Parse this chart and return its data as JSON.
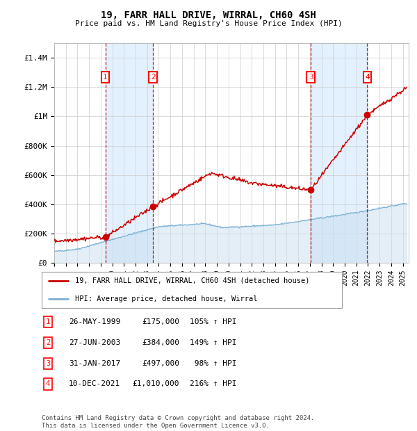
{
  "title": "19, FARR HALL DRIVE, WIRRAL, CH60 4SH",
  "subtitle": "Price paid vs. HM Land Registry's House Price Index (HPI)",
  "ylim": [
    0,
    1500000
  ],
  "yticks": [
    0,
    200000,
    400000,
    600000,
    800000,
    1000000,
    1200000,
    1400000
  ],
  "ytick_labels": [
    "£0",
    "£200K",
    "£400K",
    "£600K",
    "£800K",
    "£1M",
    "£1.2M",
    "£1.4M"
  ],
  "sale_color": "#cc0000",
  "hpi_fill_color": "#c8dff0",
  "hpi_line_color": "#7ab0d4",
  "shade_color": "#ddeeff",
  "bg_color": "#ffffff",
  "grid_color": "#cccccc",
  "sales": [
    {
      "date_num": 1999.4,
      "price": 175000,
      "label": "1"
    },
    {
      "date_num": 2003.5,
      "price": 384000,
      "label": "2"
    },
    {
      "date_num": 2017.08,
      "price": 497000,
      "label": "3"
    },
    {
      "date_num": 2021.94,
      "price": 1010000,
      "label": "4"
    }
  ],
  "sale_annotations": [
    {
      "num": "1",
      "date": "26-MAY-1999",
      "price": "£175,000",
      "pct": "105% ↑ HPI"
    },
    {
      "num": "2",
      "date": "27-JUN-2003",
      "price": "£384,000",
      "pct": "149% ↑ HPI"
    },
    {
      "num": "3",
      "date": "31-JAN-2017",
      "price": "£497,000",
      "pct": " 98% ↑ HPI"
    },
    {
      "num": "4",
      "date": "10-DEC-2021",
      "price": "£1,010,000",
      "pct": "216% ↑ HPI"
    }
  ],
  "legend_sale_label": "19, FARR HALL DRIVE, WIRRAL, CH60 4SH (detached house)",
  "legend_hpi_label": "HPI: Average price, detached house, Wirral",
  "footnote": "Contains HM Land Registry data © Crown copyright and database right 2024.\nThis data is licensed under the Open Government Licence v3.0.",
  "xmin": 1995,
  "xmax": 2025.5
}
